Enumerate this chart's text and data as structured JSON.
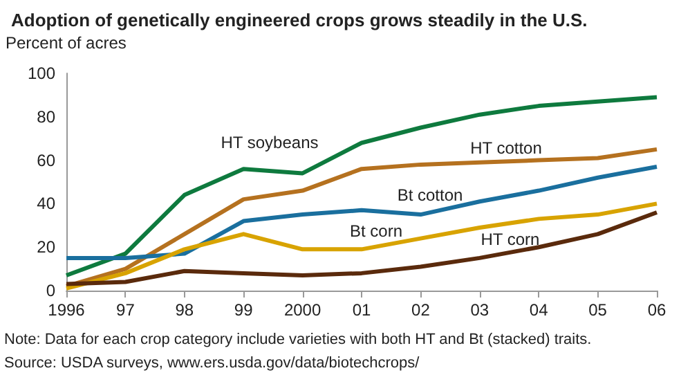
{
  "chart_data": {
    "type": "line",
    "title": "Adoption of genetically engineered crops grows steadily in the U.S.",
    "ylabel": "Percent of acres",
    "categories": [
      "1996",
      "97",
      "98",
      "99",
      "2000",
      "01",
      "02",
      "03",
      "04",
      "05",
      "06"
    ],
    "series": [
      {
        "name": "HT soybeans",
        "color": "#0e7a3e",
        "values": [
          7,
          17,
          44,
          56,
          54,
          68,
          75,
          81,
          85,
          87,
          89
        ]
      },
      {
        "name": "HT cotton",
        "color": "#b5711f",
        "values": [
          2,
          10,
          26,
          42,
          46,
          56,
          58,
          59,
          60,
          61,
          65
        ]
      },
      {
        "name": "Bt cotton",
        "color": "#1a6f9e",
        "values": [
          15,
          15,
          17,
          32,
          35,
          37,
          35,
          41,
          46,
          52,
          57
        ]
      },
      {
        "name": "Bt corn",
        "color": "#d8a300",
        "values": [
          1,
          8,
          19,
          26,
          19,
          19,
          24,
          29,
          33,
          35,
          40
        ]
      },
      {
        "name": "HT corn",
        "color": "#5a2a0c",
        "values": [
          3,
          4,
          9,
          8,
          7,
          8,
          11,
          15,
          20,
          26,
          36
        ]
      }
    ],
    "ylim": [
      0,
      100
    ],
    "yticks": [
      0,
      20,
      40,
      60,
      80,
      100
    ],
    "grid": false,
    "marker": "none",
    "line_style": "solid",
    "annotations": [
      "Note: Data for each crop category include varieties with both HT and Bt (stacked) traits.",
      "Source: USDA surveys, www.ers.usda.gov/data/biotechcrops/"
    ]
  }
}
